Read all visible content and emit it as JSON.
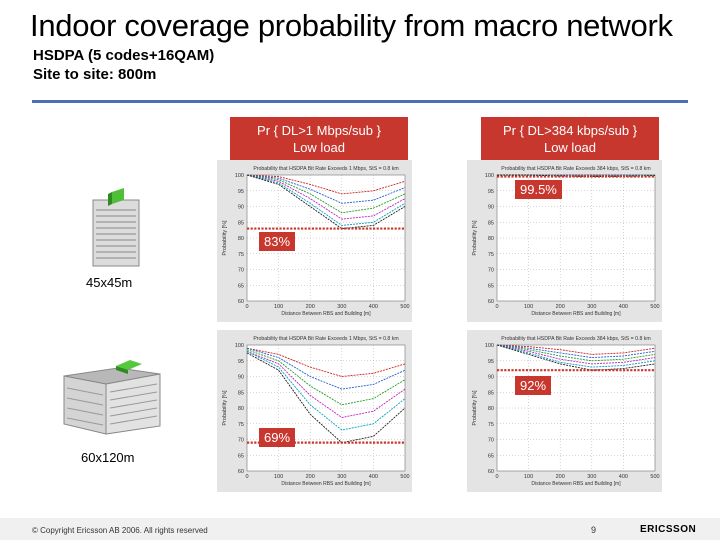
{
  "title": "Indoor coverage probability from macro network",
  "subtitle_line1": "HSDPA (5 codes+16QAM)",
  "subtitle_line2": "Site to site: 800m",
  "col_headers": [
    {
      "line1": "Pr { DL>1 Mbps/sub }",
      "line2": "Low load"
    },
    {
      "line1": "Pr { DL>384 kbps/sub }",
      "line2": "Low load"
    }
  ],
  "buildings": [
    {
      "label": "45x45m"
    },
    {
      "label": "60x120m"
    }
  ],
  "callouts": [
    "83%",
    "99.5%",
    "69%",
    "92%"
  ],
  "colors": {
    "accent": "#c8372e",
    "rule": "#4e6fb4"
  },
  "chart_data": [
    {
      "type": "line",
      "title": "Probability that HSDPA Bit Rate Exceeds 1 Mbps, StS = 0.8 km",
      "xlabel": "Distance Between RBS and Building [m]",
      "ylabel": "Probability [%]",
      "xlim": [
        0,
        500
      ],
      "ylim": [
        60,
        100
      ],
      "x": [
        0,
        100,
        200,
        300,
        400,
        500
      ],
      "xticks": [
        "0",
        "100",
        "200",
        "300",
        "400",
        "500"
      ],
      "yticks": [
        "60",
        "65",
        "70",
        "75",
        "80",
        "85",
        "90",
        "95",
        "100"
      ],
      "series": [
        {
          "name": "s1",
          "values": [
            100,
            99.5,
            97,
            94,
            95,
            98
          ]
        },
        {
          "name": "s2",
          "values": [
            100,
            99,
            95.5,
            91,
            92,
            96
          ]
        },
        {
          "name": "s3",
          "values": [
            100,
            98.5,
            94,
            88,
            89.5,
            94
          ]
        },
        {
          "name": "s4",
          "values": [
            100,
            98,
            92.5,
            86,
            87,
            92.5
          ]
        },
        {
          "name": "s5",
          "values": [
            100,
            97.5,
            91,
            84,
            85,
            91
          ]
        },
        {
          "name": "s6",
          "values": [
            100,
            97,
            90,
            83,
            84,
            90
          ]
        }
      ],
      "threshold": 83,
      "threshold_label": "83%"
    },
    {
      "type": "line",
      "title": "Probability that HSDPA Bit Rate Exceeds 384 kbps, StS = 0.8 km",
      "xlabel": "Distance Between RBS and Building [m]",
      "ylabel": "Probability [%]",
      "xlim": [
        0,
        500
      ],
      "ylim": [
        60,
        100
      ],
      "x": [
        0,
        100,
        200,
        300,
        400,
        500
      ],
      "xticks": [
        "0",
        "100",
        "200",
        "300",
        "400",
        "500"
      ],
      "yticks": [
        "60",
        "65",
        "70",
        "75",
        "80",
        "85",
        "90",
        "95",
        "100"
      ],
      "series": [
        {
          "name": "s1",
          "values": [
            100,
            100,
            100,
            100,
            100,
            100
          ]
        },
        {
          "name": "s2",
          "values": [
            100,
            100,
            100,
            99.9,
            100,
            100
          ]
        },
        {
          "name": "s3",
          "values": [
            100,
            100,
            99.9,
            99.8,
            99.9,
            100
          ]
        },
        {
          "name": "s4",
          "values": [
            100,
            100,
            99.8,
            99.7,
            99.8,
            99.9
          ]
        },
        {
          "name": "s5",
          "values": [
            100,
            100,
            99.7,
            99.6,
            99.7,
            99.9
          ]
        },
        {
          "name": "s6",
          "values": [
            100,
            100,
            99.7,
            99.5,
            99.6,
            99.8
          ]
        }
      ],
      "threshold": 99.5,
      "threshold_label": "99.5%"
    },
    {
      "type": "line",
      "title": "Probability that HSDPA Bit Rate Exceeds 1 Mbps, StS = 0.8 km",
      "xlabel": "Distance Between RBS and Building [m]",
      "ylabel": "Probability [%]",
      "xlim": [
        0,
        500
      ],
      "ylim": [
        60,
        100
      ],
      "x": [
        0,
        100,
        200,
        300,
        400,
        500
      ],
      "xticks": [
        "0",
        "100",
        "200",
        "300",
        "400",
        "500"
      ],
      "yticks": [
        "60",
        "65",
        "70",
        "75",
        "80",
        "85",
        "90",
        "95",
        "100"
      ],
      "series": [
        {
          "name": "s1",
          "values": [
            99,
            97,
            93,
            90,
            91,
            94
          ]
        },
        {
          "name": "s2",
          "values": [
            99,
            96,
            90,
            86,
            87.5,
            92
          ]
        },
        {
          "name": "s3",
          "values": [
            98.5,
            95,
            87,
            81,
            83,
            89
          ]
        },
        {
          "name": "s4",
          "values": [
            98,
            94,
            84,
            77,
            79,
            86
          ]
        },
        {
          "name": "s5",
          "values": [
            98,
            93,
            81,
            73,
            75,
            83
          ]
        },
        {
          "name": "s6",
          "values": [
            97.5,
            92,
            78,
            69,
            71,
            80
          ]
        }
      ],
      "threshold": 69,
      "threshold_label": "69%"
    },
    {
      "type": "line",
      "title": "Probability that HSDPA Bit Rate Exceeds 384 kbps, StS = 0.8 km",
      "xlabel": "Distance Between RBS and Building [m]",
      "ylabel": "Probability [%]",
      "xlim": [
        0,
        500
      ],
      "ylim": [
        60,
        100
      ],
      "x": [
        0,
        100,
        200,
        300,
        400,
        500
      ],
      "xticks": [
        "0",
        "100",
        "200",
        "300",
        "400",
        "500"
      ],
      "yticks": [
        "60",
        "65",
        "70",
        "75",
        "80",
        "85",
        "90",
        "95",
        "100"
      ],
      "series": [
        {
          "name": "s1",
          "values": [
            100,
            99.5,
            98.5,
            97,
            97.5,
            99
          ]
        },
        {
          "name": "s2",
          "values": [
            100,
            99,
            97.5,
            96,
            96.5,
            98
          ]
        },
        {
          "name": "s3",
          "values": [
            100,
            98.5,
            96.5,
            95,
            95.5,
            97
          ]
        },
        {
          "name": "s4",
          "values": [
            100,
            98,
            95.5,
            94,
            94.5,
            96
          ]
        },
        {
          "name": "s5",
          "values": [
            100,
            97.5,
            94.5,
            93,
            93.5,
            95
          ]
        },
        {
          "name": "s6",
          "values": [
            100,
            97,
            94,
            92,
            92.5,
            94
          ]
        }
      ],
      "threshold": 92,
      "threshold_label": "92%"
    }
  ],
  "footer": {
    "copyright": "© Copyright Ericsson AB 2006. All rights reserved",
    "page": "9",
    "logo": "ERICSSON"
  }
}
